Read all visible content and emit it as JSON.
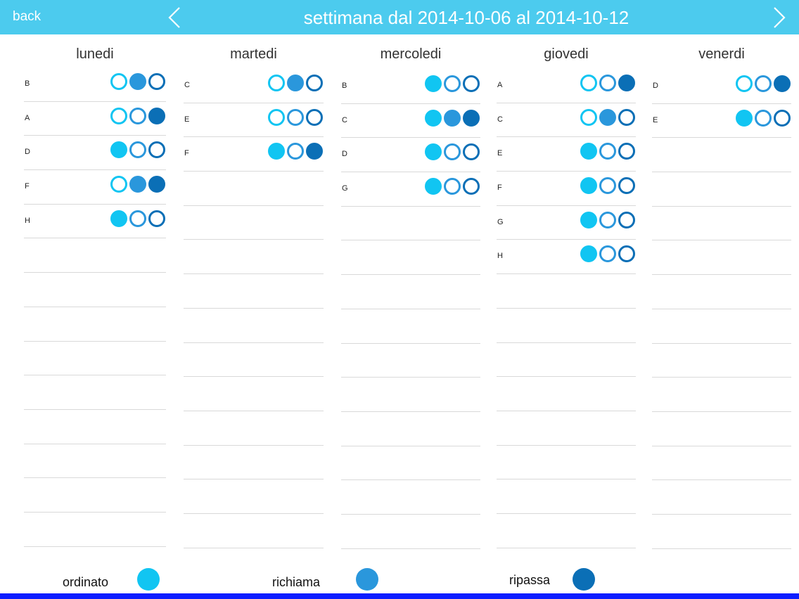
{
  "header": {
    "back_label": "back",
    "title": "settimana dal 2014-10-06 al 2014-10-12",
    "prev_icon": "chevron-left-icon",
    "next_icon": "chevron-right-icon",
    "bar_color": "#4ccbee"
  },
  "status_colors": {
    "ordinato": "#11c5f2",
    "richiama": "#2a97dc",
    "ripassa": "#0b6fb6"
  },
  "days": [
    {
      "name": "lunedi",
      "entries": [
        {
          "label": "B",
          "states": [
            false,
            true,
            false
          ]
        },
        {
          "label": "A",
          "states": [
            false,
            false,
            true
          ]
        },
        {
          "label": "D",
          "states": [
            true,
            false,
            false
          ]
        },
        {
          "label": "F",
          "states": [
            false,
            true,
            true
          ]
        },
        {
          "label": "H",
          "states": [
            true,
            false,
            false
          ]
        }
      ]
    },
    {
      "name": "martedi",
      "entries": [
        {
          "label": "C",
          "states": [
            false,
            true,
            false
          ]
        },
        {
          "label": "E",
          "states": [
            false,
            false,
            false
          ]
        },
        {
          "label": "F",
          "states": [
            true,
            false,
            true
          ]
        }
      ]
    },
    {
      "name": "mercoledi",
      "entries": [
        {
          "label": "B",
          "states": [
            true,
            false,
            false
          ]
        },
        {
          "label": "C",
          "states": [
            true,
            true,
            true
          ]
        },
        {
          "label": "D",
          "states": [
            true,
            false,
            false
          ]
        },
        {
          "label": "G",
          "states": [
            true,
            false,
            false
          ]
        }
      ]
    },
    {
      "name": "giovedi",
      "entries": [
        {
          "label": "A",
          "states": [
            false,
            false,
            true
          ]
        },
        {
          "label": "C",
          "states": [
            false,
            true,
            false
          ]
        },
        {
          "label": "E",
          "states": [
            true,
            false,
            false
          ]
        },
        {
          "label": "F",
          "states": [
            true,
            false,
            false
          ]
        },
        {
          "label": "G",
          "states": [
            true,
            false,
            false
          ]
        },
        {
          "label": "H",
          "states": [
            true,
            false,
            false
          ]
        }
      ]
    },
    {
      "name": "venerdi",
      "entries": [
        {
          "label": "D",
          "states": [
            false,
            false,
            true
          ]
        },
        {
          "label": "E",
          "states": [
            true,
            false,
            false
          ]
        }
      ]
    }
  ],
  "legend": [
    {
      "label": "ordinato",
      "color": "#11c5f2"
    },
    {
      "label": "richiama",
      "color": "#2a97dc"
    },
    {
      "label": "ripassa",
      "color": "#0b6fb6"
    }
  ]
}
